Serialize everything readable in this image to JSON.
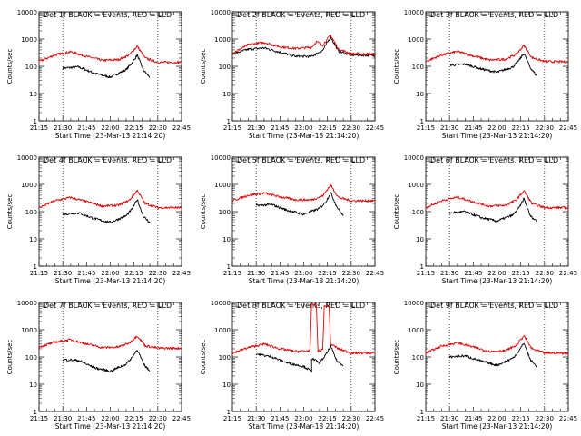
{
  "colors": {
    "events": "#000000",
    "lld": "#e00000",
    "axis": "#000000",
    "dotted": "#000000",
    "background": "#ffffff"
  },
  "chart_data": [
    {
      "type": "line",
      "title": "Det 1f BLACK = Events, RED = LLD",
      "xlabel": "Start Time (23-Mar-13 21:14:20)",
      "ylabel": "Counts/sec",
      "log_y": true,
      "ylim": [
        1,
        10000
      ],
      "xticks": [
        "21:15",
        "21:30",
        "21:45",
        "22:00",
        "22:15",
        "22:30",
        "22:45"
      ],
      "yticks": [
        "1",
        "10",
        "100",
        "1000",
        "10000"
      ],
      "series": [
        {
          "name": "Events",
          "color": "#000000",
          "x": [
            "21:30",
            "21:40",
            "21:50",
            "22:00",
            "22:10",
            "22:14",
            "22:17",
            "22:21",
            "22:25"
          ],
          "y": [
            85,
            95,
            55,
            40,
            75,
            140,
            260,
            70,
            40
          ]
        },
        {
          "name": "LLD",
          "color": "#e00000",
          "x": [
            "21:15",
            "21:25",
            "21:35",
            "21:45",
            "21:55",
            "22:05",
            "22:12",
            "22:17",
            "22:22",
            "22:30",
            "22:45"
          ],
          "y": [
            150,
            260,
            340,
            230,
            165,
            175,
            260,
            550,
            200,
            140,
            140
          ]
        }
      ]
    },
    {
      "type": "line",
      "title": "Det 2f BLACK = Events, RED = LLD",
      "xlabel": "Start Time (23-Mar-13 21:14:20)",
      "ylabel": "Counts/sec",
      "log_y": true,
      "ylim": [
        1,
        10000
      ],
      "xticks": [
        "21:15",
        "21:30",
        "21:45",
        "22:00",
        "22:15",
        "22:30",
        "22:45"
      ],
      "yticks": [
        "1",
        "10",
        "100",
        "1000",
        "10000"
      ],
      "series": [
        {
          "name": "Events",
          "color": "#000000",
          "x": [
            "21:15",
            "21:25",
            "21:35",
            "21:45",
            "21:55",
            "22:05",
            "22:12",
            "22:17",
            "22:22",
            "22:30",
            "22:45"
          ],
          "y": [
            280,
            420,
            470,
            330,
            230,
            230,
            380,
            1200,
            350,
            260,
            250
          ]
        },
        {
          "name": "LLD",
          "color": "#e00000",
          "x": [
            "21:15",
            "21:25",
            "21:35",
            "21:45",
            "21:55",
            "22:05",
            "22:08",
            "22:12",
            "22:17",
            "22:22",
            "22:30",
            "22:45"
          ],
          "y": [
            300,
            620,
            750,
            520,
            450,
            500,
            800,
            600,
            1400,
            420,
            290,
            280
          ]
        }
      ]
    },
    {
      "type": "line",
      "title": "Det 3f BLACK = Events, RED = LLD",
      "xlabel": "Start Time (23-Mar-13 21:14:20)",
      "ylabel": "Counts/sec",
      "log_y": true,
      "ylim": [
        1,
        10000
      ],
      "xticks": [
        "21:15",
        "21:30",
        "21:45",
        "22:00",
        "22:15",
        "22:30",
        "22:45"
      ],
      "yticks": [
        "1",
        "10",
        "100",
        "1000",
        "10000"
      ],
      "series": [
        {
          "name": "Events",
          "color": "#000000",
          "x": [
            "21:30",
            "21:40",
            "21:50",
            "22:00",
            "22:10",
            "22:14",
            "22:17",
            "22:21",
            "22:25"
          ],
          "y": [
            110,
            120,
            80,
            60,
            95,
            170,
            300,
            90,
            45
          ]
        },
        {
          "name": "LLD",
          "color": "#e00000",
          "x": [
            "21:15",
            "21:25",
            "21:35",
            "21:45",
            "21:55",
            "22:05",
            "22:12",
            "22:17",
            "22:22",
            "22:30",
            "22:45"
          ],
          "y": [
            150,
            260,
            350,
            240,
            170,
            180,
            270,
            580,
            210,
            150,
            145
          ]
        }
      ]
    },
    {
      "type": "line",
      "title": "Det 4f BLACK = Events, RED = LLD",
      "xlabel": "Start Time (23-Mar-13 21:14:20)",
      "ylabel": "Counts/sec",
      "log_y": true,
      "ylim": [
        1,
        10000
      ],
      "xticks": [
        "21:15",
        "21:30",
        "21:45",
        "22:00",
        "22:15",
        "22:30",
        "22:45"
      ],
      "yticks": [
        "1",
        "10",
        "100",
        "1000",
        "10000"
      ],
      "series": [
        {
          "name": "Events",
          "color": "#000000",
          "x": [
            "21:30",
            "21:40",
            "21:50",
            "22:00",
            "22:10",
            "22:14",
            "22:17",
            "22:21",
            "22:25"
          ],
          "y": [
            80,
            90,
            55,
            40,
            70,
            130,
            280,
            65,
            40
          ]
        },
        {
          "name": "LLD",
          "color": "#e00000",
          "x": [
            "21:15",
            "21:25",
            "21:35",
            "21:45",
            "21:55",
            "22:05",
            "22:12",
            "22:17",
            "22:22",
            "22:30",
            "22:45"
          ],
          "y": [
            140,
            250,
            330,
            230,
            160,
            170,
            260,
            600,
            200,
            140,
            140
          ]
        }
      ]
    },
    {
      "type": "line",
      "title": "Det 5f BLACK = Events, RED = LLD",
      "xlabel": "Start Time (23-Mar-13 21:14:20)",
      "ylabel": "Counts/sec",
      "log_y": true,
      "ylim": [
        1,
        10000
      ],
      "xticks": [
        "21:15",
        "21:30",
        "21:45",
        "22:00",
        "22:15",
        "22:30",
        "22:45"
      ],
      "yticks": [
        "1",
        "10",
        "100",
        "1000",
        "10000"
      ],
      "series": [
        {
          "name": "Events",
          "color": "#000000",
          "x": [
            "21:30",
            "21:40",
            "21:50",
            "22:00",
            "22:10",
            "22:14",
            "22:17",
            "22:21",
            "22:25"
          ],
          "y": [
            170,
            180,
            110,
            80,
            130,
            230,
            500,
            150,
            70
          ]
        },
        {
          "name": "LLD",
          "color": "#e00000",
          "x": [
            "21:15",
            "21:25",
            "21:35",
            "21:45",
            "21:55",
            "22:05",
            "22:12",
            "22:17",
            "22:22",
            "22:30",
            "22:45"
          ],
          "y": [
            250,
            400,
            480,
            350,
            270,
            270,
            380,
            950,
            330,
            250,
            250
          ]
        }
      ]
    },
    {
      "type": "line",
      "title": "Det 6f BLACK = Events, RED = LLD",
      "xlabel": "Start Time (23-Mar-13 21:14:20)",
      "ylabel": "Counts/sec",
      "log_y": true,
      "ylim": [
        1,
        10000
      ],
      "xticks": [
        "21:15",
        "21:30",
        "21:45",
        "22:00",
        "22:15",
        "22:30",
        "22:45"
      ],
      "yticks": [
        "1",
        "10",
        "100",
        "1000",
        "10000"
      ],
      "series": [
        {
          "name": "Events",
          "color": "#000000",
          "x": [
            "21:30",
            "21:40",
            "21:50",
            "22:00",
            "22:10",
            "22:14",
            "22:17",
            "22:21",
            "22:25"
          ],
          "y": [
            90,
            100,
            60,
            45,
            75,
            140,
            300,
            70,
            45
          ]
        },
        {
          "name": "LLD",
          "color": "#e00000",
          "x": [
            "21:15",
            "21:25",
            "21:35",
            "21:45",
            "21:55",
            "22:05",
            "22:12",
            "22:17",
            "22:22",
            "22:30",
            "22:45"
          ],
          "y": [
            140,
            250,
            340,
            230,
            160,
            170,
            260,
            580,
            200,
            140,
            140
          ]
        }
      ]
    },
    {
      "type": "line",
      "title": "Det 7f BLACK = Events, RED = LLD",
      "xlabel": "Start Time (23-Mar-13 21:14:20)",
      "ylabel": "Counts/sec",
      "log_y": true,
      "ylim": [
        1,
        10000
      ],
      "xticks": [
        "21:15",
        "21:30",
        "21:45",
        "22:00",
        "22:15",
        "22:30",
        "22:45"
      ],
      "yticks": [
        "1",
        "10",
        "100",
        "1000",
        "10000"
      ],
      "series": [
        {
          "name": "Events",
          "color": "#000000",
          "x": [
            "21:30",
            "21:40",
            "21:50",
            "22:00",
            "22:10",
            "22:14",
            "22:17",
            "22:21",
            "22:25"
          ],
          "y": [
            80,
            75,
            40,
            30,
            55,
            100,
            190,
            55,
            30
          ]
        },
        {
          "name": "LLD",
          "color": "#e00000",
          "x": [
            "21:15",
            "21:25",
            "21:35",
            "21:45",
            "21:55",
            "22:05",
            "22:12",
            "22:17",
            "22:22",
            "22:30",
            "22:45"
          ],
          "y": [
            230,
            350,
            430,
            300,
            220,
            230,
            330,
            600,
            260,
            210,
            210
          ]
        }
      ]
    },
    {
      "type": "line",
      "title": "Det 8f BLACK = Events, RED = LLD",
      "xlabel": "Start Time (23-Mar-13 21:14:20)",
      "ylabel": "Counts/sec",
      "log_y": true,
      "ylim": [
        1,
        10000
      ],
      "xticks": [
        "21:15",
        "21:30",
        "21:45",
        "22:00",
        "22:15",
        "22:30",
        "22:45"
      ],
      "yticks": [
        "1",
        "10",
        "100",
        "1000",
        "10000"
      ],
      "series": [
        {
          "name": "Events",
          "color": "#000000",
          "x": [
            "21:30",
            "21:40",
            "21:50",
            "22:00",
            "22:05",
            "22:05",
            "22:10",
            "22:14",
            "22:17",
            "22:21",
            "22:25"
          ],
          "y": [
            130,
            100,
            60,
            45,
            30,
            90,
            60,
            120,
            250,
            70,
            50
          ]
        },
        {
          "name": "LLD",
          "color": "#e00000",
          "x": [
            "21:15",
            "21:25",
            "21:35",
            "21:45",
            "21:55",
            "22:04",
            "22:05",
            "22:08",
            "22:09",
            "22:12",
            "22:13",
            "22:16",
            "22:17",
            "22:22",
            "22:30",
            "22:45"
          ],
          "y": [
            140,
            220,
            300,
            200,
            160,
            170,
            8000,
            8000,
            160,
            190,
            7500,
            7500,
            300,
            200,
            140,
            140
          ]
        }
      ]
    },
    {
      "type": "line",
      "title": "Det 9f BLACK = Events, RED = LLD",
      "xlabel": "Start Time (23-Mar-13 21:14:20)",
      "ylabel": "Counts/sec",
      "log_y": true,
      "ylim": [
        1,
        10000
      ],
      "xticks": [
        "21:15",
        "21:30",
        "21:45",
        "22:00",
        "22:15",
        "22:30",
        "22:45"
      ],
      "yticks": [
        "1",
        "10",
        "100",
        "1000",
        "10000"
      ],
      "series": [
        {
          "name": "Events",
          "color": "#000000",
          "x": [
            "21:30",
            "21:40",
            "21:50",
            "22:00",
            "22:10",
            "22:14",
            "22:17",
            "22:21",
            "22:25"
          ],
          "y": [
            100,
            110,
            70,
            50,
            90,
            170,
            330,
            80,
            45
          ]
        },
        {
          "name": "LLD",
          "color": "#e00000",
          "x": [
            "21:15",
            "21:25",
            "21:35",
            "21:45",
            "21:55",
            "22:05",
            "22:12",
            "22:17",
            "22:22",
            "22:30",
            "22:45"
          ],
          "y": [
            140,
            250,
            330,
            230,
            160,
            170,
            260,
            600,
            200,
            140,
            140
          ]
        }
      ]
    }
  ]
}
